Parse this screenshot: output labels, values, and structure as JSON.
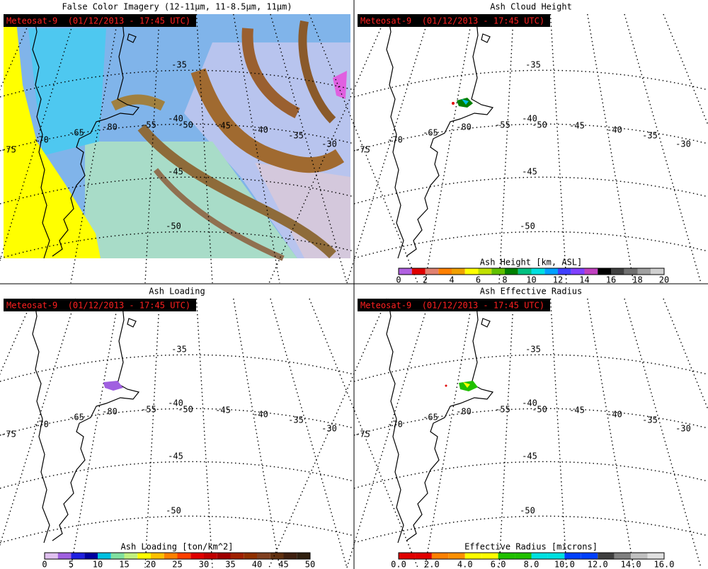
{
  "grid": {
    "lat_labels": [
      -35,
      -40,
      -45,
      -50
    ],
    "lon_labels": [
      -80,
      -55,
      -50,
      -45,
      -40,
      -35,
      -30,
      -65,
      -70,
      -75
    ]
  },
  "panels": [
    {
      "title": "False Color Imagery (12-11µm, 11-8.5µm, 11µm)",
      "timestamp": "Meteosat-9  (01/12/2013 - 17:45 UTC)"
    },
    {
      "title": "Ash Cloud Height",
      "timestamp": "Meteosat-9  (01/12/2013 - 17:45 UTC)",
      "colorbar": {
        "label": "Ash Height [km, ASL]",
        "ticks": [
          0,
          2,
          4,
          6,
          8,
          10,
          12,
          14,
          16,
          18,
          20
        ],
        "colors": [
          "#b060e0",
          "#e00000",
          "#e08070",
          "#ff8000",
          "#f0a000",
          "#ffff00",
          "#c0e000",
          "#60c000",
          "#008000",
          "#00c080",
          "#00e0e0",
          "#00a0ff",
          "#4040ff",
          "#8040ff",
          "#c040c0",
          "#000000",
          "#404040",
          "#707070",
          "#a0a0a0",
          "#d0d0d0"
        ]
      }
    },
    {
      "title": "Ash Loading",
      "timestamp": "Meteosat-9  (01/12/2013 - 17:45 UTC)",
      "colorbar": {
        "label": "Ash Loading [ton/km^2]",
        "ticks": [
          0,
          5,
          10,
          15,
          20,
          25,
          30,
          35,
          40,
          45,
          50
        ],
        "colors": [
          "#e0c0f0",
          "#a060e0",
          "#2020e0",
          "#0000a0",
          "#00c0e0",
          "#80e0a0",
          "#c0f080",
          "#ffff00",
          "#ffc000",
          "#ff8000",
          "#ff4000",
          "#e00000",
          "#c00000",
          "#a00000",
          "#a02000",
          "#903000",
          "#804020",
          "#603010",
          "#402010",
          "#302010"
        ]
      }
    },
    {
      "title": "Ash Effective Radius",
      "timestamp": "Meteosat-9  (01/12/2013 - 17:45 UTC)",
      "colorbar": {
        "label": "Effective Radius [microns]",
        "ticks": [
          "0.0",
          "2.0",
          "4.0",
          "6.0",
          "8.0",
          "10.0",
          "12.0",
          "14.0",
          "16.0"
        ],
        "colors": [
          "#e00000",
          "#e00000",
          "#ff8000",
          "#ff9000",
          "#ffff00",
          "#ffff00",
          "#20c000",
          "#20c000",
          "#00e0e0",
          "#00e0e0",
          "#0040ff",
          "#0040ff",
          "#404040",
          "#808080",
          "#c0c0c0",
          "#e0e0e0"
        ]
      }
    }
  ]
}
